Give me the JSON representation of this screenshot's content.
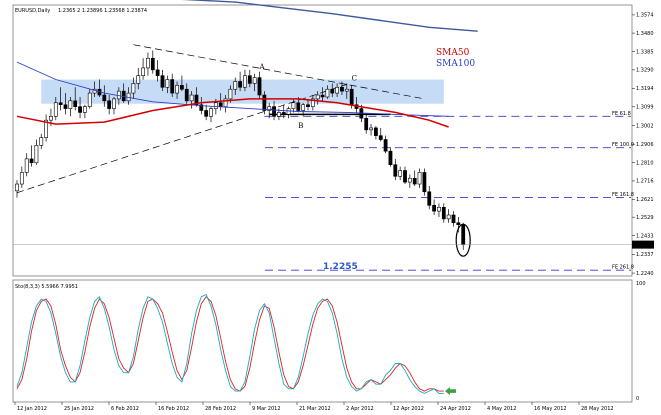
{
  "header": {
    "symbol_line": "EURUSD,Daily",
    "ohlc_line": "1.2365 2  1.23896  1.23568  1.23874"
  },
  "indicator_label": "Sto(8,3,3) 5.5966 7.9951",
  "chart_data": [
    {
      "type": "candlestick",
      "title": "EURUSD,Daily",
      "ylim": [
        1.223,
        1.362
      ],
      "y_ticks": [
        "1.3574",
        "1.3480",
        "1.3385",
        "1.3290",
        "1.3194",
        "1.3099",
        "1.3002",
        "1.2906",
        "1.2810",
        "1.2716",
        "1.2621",
        "1.2529",
        "1.2433",
        "1.2337",
        "1.2240"
      ],
      "x_ticks": [
        "12 Jan 2012",
        "25 Jan 2012",
        "6 Feb 2012",
        "16 Feb 2012",
        "28 Feb 2012",
        "9 Mar 2012",
        "21 Mar 2012",
        "2 Apr 2012",
        "12 Apr 2012",
        "24 Apr 2012",
        "4 May 2012",
        "16 May 2012",
        "28 May 2012"
      ],
      "candles": [
        {
          "o": 1.2665,
          "h": 1.272,
          "l": 1.263,
          "c": 1.27
        },
        {
          "o": 1.27,
          "h": 1.279,
          "l": 1.268,
          "c": 1.276
        },
        {
          "o": 1.276,
          "h": 1.286,
          "l": 1.274,
          "c": 1.283
        },
        {
          "o": 1.283,
          "h": 1.29,
          "l": 1.279,
          "c": 1.281
        },
        {
          "o": 1.281,
          "h": 1.293,
          "l": 1.28,
          "c": 1.29
        },
        {
          "o": 1.29,
          "h": 1.296,
          "l": 1.288,
          "c": 1.294
        },
        {
          "o": 1.294,
          "h": 1.306,
          "l": 1.292,
          "c": 1.303
        },
        {
          "o": 1.303,
          "h": 1.309,
          "l": 1.3,
          "c": 1.305
        },
        {
          "o": 1.305,
          "h": 1.315,
          "l": 1.303,
          "c": 1.312
        },
        {
          "o": 1.312,
          "h": 1.32,
          "l": 1.308,
          "c": 1.311
        },
        {
          "o": 1.311,
          "h": 1.317,
          "l": 1.306,
          "c": 1.309
        },
        {
          "o": 1.309,
          "h": 1.315,
          "l": 1.305,
          "c": 1.313
        },
        {
          "o": 1.313,
          "h": 1.32,
          "l": 1.308,
          "c": 1.31
        },
        {
          "o": 1.31,
          "h": 1.315,
          "l": 1.304,
          "c": 1.307
        },
        {
          "o": 1.307,
          "h": 1.311,
          "l": 1.304,
          "c": 1.31
        },
        {
          "o": 1.31,
          "h": 1.319,
          "l": 1.309,
          "c": 1.317
        },
        {
          "o": 1.317,
          "h": 1.323,
          "l": 1.315,
          "c": 1.319
        },
        {
          "o": 1.319,
          "h": 1.324,
          "l": 1.315,
          "c": 1.316
        },
        {
          "o": 1.316,
          "h": 1.321,
          "l": 1.31,
          "c": 1.313
        },
        {
          "o": 1.313,
          "h": 1.316,
          "l": 1.306,
          "c": 1.309
        },
        {
          "o": 1.309,
          "h": 1.315,
          "l": 1.306,
          "c": 1.314
        },
        {
          "o": 1.314,
          "h": 1.32,
          "l": 1.311,
          "c": 1.318
        },
        {
          "o": 1.318,
          "h": 1.322,
          "l": 1.312,
          "c": 1.313
        },
        {
          "o": 1.313,
          "h": 1.32,
          "l": 1.311,
          "c": 1.317
        },
        {
          "o": 1.317,
          "h": 1.325,
          "l": 1.314,
          "c": 1.322
        },
        {
          "o": 1.322,
          "h": 1.33,
          "l": 1.319,
          "c": 1.326
        },
        {
          "o": 1.326,
          "h": 1.335,
          "l": 1.324,
          "c": 1.33
        },
        {
          "o": 1.33,
          "h": 1.338,
          "l": 1.326,
          "c": 1.335
        },
        {
          "o": 1.335,
          "h": 1.339,
          "l": 1.327,
          "c": 1.329
        },
        {
          "o": 1.329,
          "h": 1.334,
          "l": 1.323,
          "c": 1.326
        },
        {
          "o": 1.326,
          "h": 1.329,
          "l": 1.318,
          "c": 1.32
        },
        {
          "o": 1.32,
          "h": 1.326,
          "l": 1.317,
          "c": 1.324
        },
        {
          "o": 1.324,
          "h": 1.327,
          "l": 1.315,
          "c": 1.317
        },
        {
          "o": 1.317,
          "h": 1.323,
          "l": 1.314,
          "c": 1.321
        },
        {
          "o": 1.321,
          "h": 1.326,
          "l": 1.318,
          "c": 1.319
        },
        {
          "o": 1.319,
          "h": 1.322,
          "l": 1.311,
          "c": 1.313
        },
        {
          "o": 1.313,
          "h": 1.318,
          "l": 1.309,
          "c": 1.316
        },
        {
          "o": 1.316,
          "h": 1.32,
          "l": 1.31,
          "c": 1.311
        },
        {
          "o": 1.311,
          "h": 1.315,
          "l": 1.306,
          "c": 1.308
        },
        {
          "o": 1.308,
          "h": 1.311,
          "l": 1.303,
          "c": 1.305
        },
        {
          "o": 1.305,
          "h": 1.31,
          "l": 1.302,
          "c": 1.309
        },
        {
          "o": 1.309,
          "h": 1.314,
          "l": 1.306,
          "c": 1.312
        },
        {
          "o": 1.312,
          "h": 1.317,
          "l": 1.308,
          "c": 1.31
        },
        {
          "o": 1.31,
          "h": 1.316,
          "l": 1.307,
          "c": 1.314
        },
        {
          "o": 1.314,
          "h": 1.321,
          "l": 1.312,
          "c": 1.319
        },
        {
          "o": 1.319,
          "h": 1.325,
          "l": 1.316,
          "c": 1.323
        },
        {
          "o": 1.323,
          "h": 1.328,
          "l": 1.318,
          "c": 1.32
        },
        {
          "o": 1.32,
          "h": 1.329,
          "l": 1.318,
          "c": 1.326
        },
        {
          "o": 1.326,
          "h": 1.329,
          "l": 1.32,
          "c": 1.322
        },
        {
          "o": 1.322,
          "h": 1.327,
          "l": 1.318,
          "c": 1.325
        },
        {
          "o": 1.325,
          "h": 1.328,
          "l": 1.314,
          "c": 1.316
        },
        {
          "o": 1.316,
          "h": 1.318,
          "l": 1.306,
          "c": 1.308
        },
        {
          "o": 1.308,
          "h": 1.312,
          "l": 1.304,
          "c": 1.31
        },
        {
          "o": 1.31,
          "h": 1.313,
          "l": 1.303,
          "c": 1.305
        },
        {
          "o": 1.305,
          "h": 1.309,
          "l": 1.303,
          "c": 1.307
        },
        {
          "o": 1.307,
          "h": 1.311,
          "l": 1.304,
          "c": 1.306
        },
        {
          "o": 1.306,
          "h": 1.31,
          "l": 1.304,
          "c": 1.309
        },
        {
          "o": 1.309,
          "h": 1.314,
          "l": 1.307,
          "c": 1.312
        },
        {
          "o": 1.312,
          "h": 1.315,
          "l": 1.307,
          "c": 1.308
        },
        {
          "o": 1.308,
          "h": 1.312,
          "l": 1.305,
          "c": 1.311
        },
        {
          "o": 1.311,
          "h": 1.314,
          "l": 1.308,
          "c": 1.31
        },
        {
          "o": 1.31,
          "h": 1.316,
          "l": 1.308,
          "c": 1.314
        },
        {
          "o": 1.314,
          "h": 1.318,
          "l": 1.311,
          "c": 1.316
        },
        {
          "o": 1.316,
          "h": 1.32,
          "l": 1.313,
          "c": 1.315
        },
        {
          "o": 1.315,
          "h": 1.321,
          "l": 1.314,
          "c": 1.319
        },
        {
          "o": 1.319,
          "h": 1.322,
          "l": 1.315,
          "c": 1.317
        },
        {
          "o": 1.317,
          "h": 1.322,
          "l": 1.315,
          "c": 1.32
        },
        {
          "o": 1.32,
          "h": 1.323,
          "l": 1.316,
          "c": 1.318
        },
        {
          "o": 1.318,
          "h": 1.322,
          "l": 1.314,
          "c": 1.319
        },
        {
          "o": 1.319,
          "h": 1.321,
          "l": 1.309,
          "c": 1.311
        },
        {
          "o": 1.311,
          "h": 1.315,
          "l": 1.307,
          "c": 1.309
        },
        {
          "o": 1.309,
          "h": 1.311,
          "l": 1.302,
          "c": 1.304
        },
        {
          "o": 1.304,
          "h": 1.306,
          "l": 1.296,
          "c": 1.298
        },
        {
          "o": 1.298,
          "h": 1.301,
          "l": 1.295,
          "c": 1.299
        },
        {
          "o": 1.299,
          "h": 1.3,
          "l": 1.293,
          "c": 1.295
        },
        {
          "o": 1.295,
          "h": 1.299,
          "l": 1.292,
          "c": 1.293
        },
        {
          "o": 1.293,
          "h": 1.295,
          "l": 1.286,
          "c": 1.287
        },
        {
          "o": 1.287,
          "h": 1.289,
          "l": 1.279,
          "c": 1.28
        },
        {
          "o": 1.28,
          "h": 1.283,
          "l": 1.272,
          "c": 1.274
        },
        {
          "o": 1.274,
          "h": 1.279,
          "l": 1.272,
          "c": 1.277
        },
        {
          "o": 1.277,
          "h": 1.279,
          "l": 1.27,
          "c": 1.271
        },
        {
          "o": 1.271,
          "h": 1.275,
          "l": 1.268,
          "c": 1.273
        },
        {
          "o": 1.273,
          "h": 1.277,
          "l": 1.269,
          "c": 1.27
        },
        {
          "o": 1.27,
          "h": 1.278,
          "l": 1.268,
          "c": 1.276
        },
        {
          "o": 1.276,
          "h": 1.278,
          "l": 1.264,
          "c": 1.266
        },
        {
          "o": 1.266,
          "h": 1.269,
          "l": 1.257,
          "c": 1.259
        },
        {
          "o": 1.259,
          "h": 1.262,
          "l": 1.254,
          "c": 1.256
        },
        {
          "o": 1.256,
          "h": 1.26,
          "l": 1.253,
          "c": 1.258
        },
        {
          "o": 1.258,
          "h": 1.26,
          "l": 1.25,
          "c": 1.252
        },
        {
          "o": 1.252,
          "h": 1.257,
          "l": 1.25,
          "c": 1.254
        },
        {
          "o": 1.254,
          "h": 1.256,
          "l": 1.248,
          "c": 1.25
        },
        {
          "o": 1.25,
          "h": 1.253,
          "l": 1.245,
          "c": 1.249
        },
        {
          "o": 1.249,
          "h": 1.25,
          "l": 1.236,
          "c": 1.2387
        }
      ],
      "sma50": [
        [
          0,
          1.305
        ],
        [
          8,
          1.301
        ],
        [
          18,
          1.302
        ],
        [
          28,
          1.308
        ],
        [
          38,
          1.312
        ],
        [
          48,
          1.314
        ],
        [
          58,
          1.314
        ],
        [
          66,
          1.312
        ],
        [
          72,
          1.3095
        ],
        [
          78,
          1.307
        ],
        [
          85,
          1.303
        ],
        [
          89,
          1.2995
        ]
      ],
      "sma100": [
        [
          0,
          1.333
        ],
        [
          8,
          1.324
        ],
        [
          18,
          1.317
        ],
        [
          28,
          1.3125
        ],
        [
          38,
          1.3105
        ],
        [
          48,
          1.309
        ],
        [
          58,
          1.3075
        ],
        [
          68,
          1.307
        ],
        [
          78,
          1.306
        ],
        [
          89,
          1.305
        ]
      ],
      "sma_top": [
        [
          30,
          1.366
        ],
        [
          45,
          1.364
        ],
        [
          55,
          1.361
        ],
        [
          65,
          1.358
        ],
        [
          75,
          1.3545
        ],
        [
          85,
          1.351
        ],
        [
          95,
          1.349
        ]
      ],
      "zone": {
        "from_index": 5,
        "to_index": 88,
        "high": 1.324,
        "low": 1.3115
      },
      "trend_lines": [
        {
          "from": [
            0,
            1.2655
          ],
          "to": [
            68,
            1.3215
          ]
        },
        {
          "from": [
            24,
            1.342
          ],
          "to": [
            84,
            1.314
          ]
        }
      ],
      "support_line": {
        "from_index": 52,
        "to_index": 77,
        "price": 1.306
      },
      "fibo_levels": [
        {
          "label": "FE 61.8",
          "price": 1.305
        },
        {
          "label": "FE 100.0",
          "price": 1.2888
        },
        {
          "label": "FE 161.8",
          "price": 1.263
        },
        {
          "label": "FE 261.8",
          "price": 1.2255
        }
      ],
      "pattern_labels": [
        {
          "text": "A",
          "index": 50,
          "price": 1.3295
        },
        {
          "text": "B",
          "index": 58,
          "price": 1.299
        },
        {
          "text": "C",
          "index": 69,
          "price": 1.3235
        }
      ],
      "target_label": "1.2255",
      "current_price": "1.2387",
      "legend": [
        {
          "name": "SMA50",
          "color": "#d10000"
        },
        {
          "name": "SMA100",
          "color": "#2b3cc6"
        }
      ],
      "colors": {
        "candle": "#000000",
        "zone": "#bcd5f5",
        "fibo": "#2f3fc9",
        "sma50": "#d10000",
        "sma100": "#2b3cc6",
        "sma_top": "#3d5a9c",
        "trend": "#000000",
        "target": "#3157c8"
      }
    },
    {
      "type": "line",
      "title": "Sto(8,3,3) 5.5966 7.9951",
      "ylim": [
        0,
        100
      ],
      "y_ticks": [
        "100",
        "0"
      ],
      "series": [
        {
          "color": "#e02020",
          "values": [
            8,
            16,
            34,
            58,
            76,
            84,
            86,
            80,
            64,
            42,
            28,
            18,
            14,
            22,
            40,
            62,
            78,
            86,
            82,
            70,
            52,
            34,
            26,
            22,
            30,
            50,
            70,
            84,
            86,
            82,
            74,
            58,
            40,
            24,
            16,
            24,
            44,
            66,
            82,
            88,
            84,
            72,
            52,
            32,
            16,
            8,
            6,
            10,
            26,
            48,
            68,
            80,
            78,
            62,
            40,
            20,
            10,
            8,
            14,
            28,
            46,
            64,
            78,
            84,
            86,
            80,
            66,
            46,
            26,
            14,
            8,
            8,
            12,
            16,
            14,
            12,
            16,
            20,
            26,
            30,
            28,
            22,
            14,
            8,
            6,
            8,
            8,
            6,
            6
          ]
        },
        {
          "color": "#19a9c4",
          "values": [
            10,
            22,
            44,
            66,
            80,
            86,
            84,
            74,
            56,
            36,
            22,
            14,
            14,
            28,
            50,
            70,
            84,
            88,
            78,
            62,
            42,
            28,
            22,
            22,
            36,
            60,
            78,
            88,
            86,
            78,
            66,
            48,
            30,
            18,
            14,
            30,
            56,
            76,
            88,
            90,
            80,
            64,
            42,
            24,
            10,
            6,
            6,
            14,
            36,
            60,
            76,
            82,
            74,
            52,
            30,
            12,
            8,
            8,
            18,
            36,
            56,
            72,
            82,
            86,
            84,
            74,
            56,
            34,
            18,
            10,
            6,
            8,
            14,
            16,
            12,
            12,
            20,
            24,
            30,
            30,
            24,
            16,
            10,
            6,
            4,
            6,
            8,
            4,
            4
          ]
        }
      ],
      "marker": {
        "index": 87,
        "value": 6,
        "color": "#40a040"
      }
    }
  ]
}
